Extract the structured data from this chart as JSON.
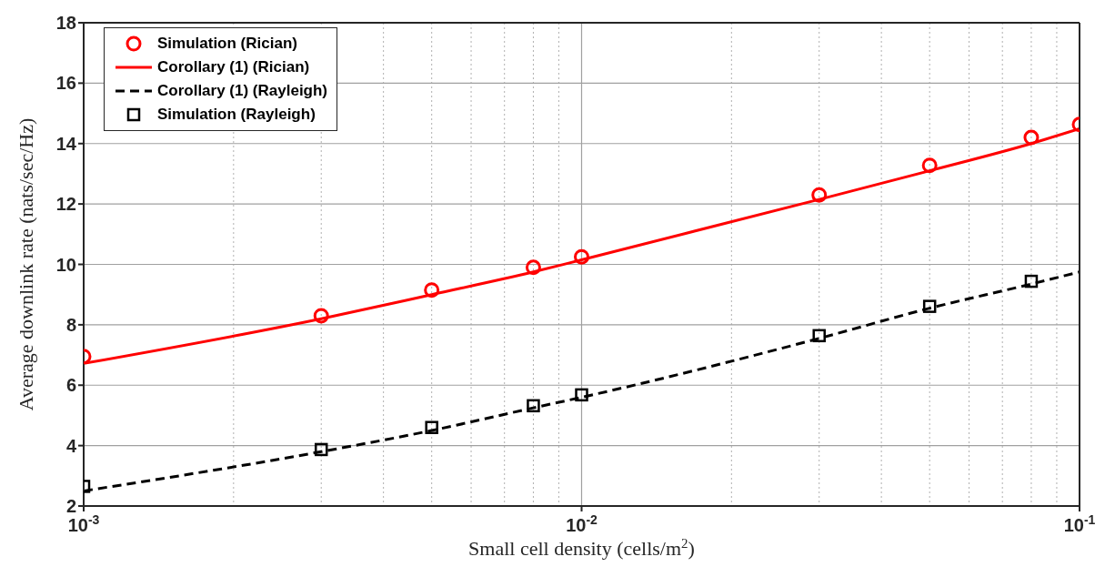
{
  "chart_data": {
    "type": "line",
    "xlabel": "Small cell density (cells/m$^{2}$)",
    "ylabel": "Average downlink rate (nats/sec/Hz)",
    "x": [
      0.001,
      0.003,
      0.005,
      0.008,
      0.01,
      0.03,
      0.05,
      0.08,
      0.1
    ],
    "series": [
      {
        "name": "Simulation (Rician)",
        "type": "scatter",
        "marker": "circle",
        "color": "#ff0000",
        "values": [
          6.95,
          8.3,
          9.15,
          9.9,
          10.25,
          12.3,
          13.28,
          14.2,
          14.63
        ]
      },
      {
        "name": "Corollary (1) (Rician)",
        "line_style": "solid",
        "marker": "none",
        "color": "#ff0000",
        "values": [
          6.72,
          8.2,
          9.0,
          9.75,
          10.15,
          12.15,
          13.1,
          14.0,
          14.49
        ]
      },
      {
        "name": "Corollary (1) (Rayleigh)",
        "line_style": "dashed",
        "marker": "none",
        "color": "#000000",
        "values": [
          2.5,
          3.8,
          4.5,
          5.25,
          5.6,
          7.55,
          8.55,
          9.35,
          9.75
        ]
      },
      {
        "name": "Simulation (Rayleigh)",
        "type": "scatter",
        "marker": "square",
        "color": "#000000",
        "values": [
          2.65,
          3.87,
          4.6,
          5.32,
          5.68,
          7.64,
          8.61,
          9.44,
          null
        ]
      }
    ],
    "log": "x",
    "xlim": [
      0.001,
      0.1
    ],
    "xticks": [
      {
        "value": 0.001,
        "label": "10$^{-3}$"
      },
      {
        "value": 0.01,
        "label": "10$^{-2}$"
      },
      {
        "value": 0.1,
        "label": "10$^{-1}$"
      }
    ],
    "ylim": [
      2,
      18
    ],
    "yticks": [
      2,
      4,
      6,
      8,
      10,
      12,
      14,
      16,
      18
    ],
    "grid": true,
    "legend": "top left"
  }
}
